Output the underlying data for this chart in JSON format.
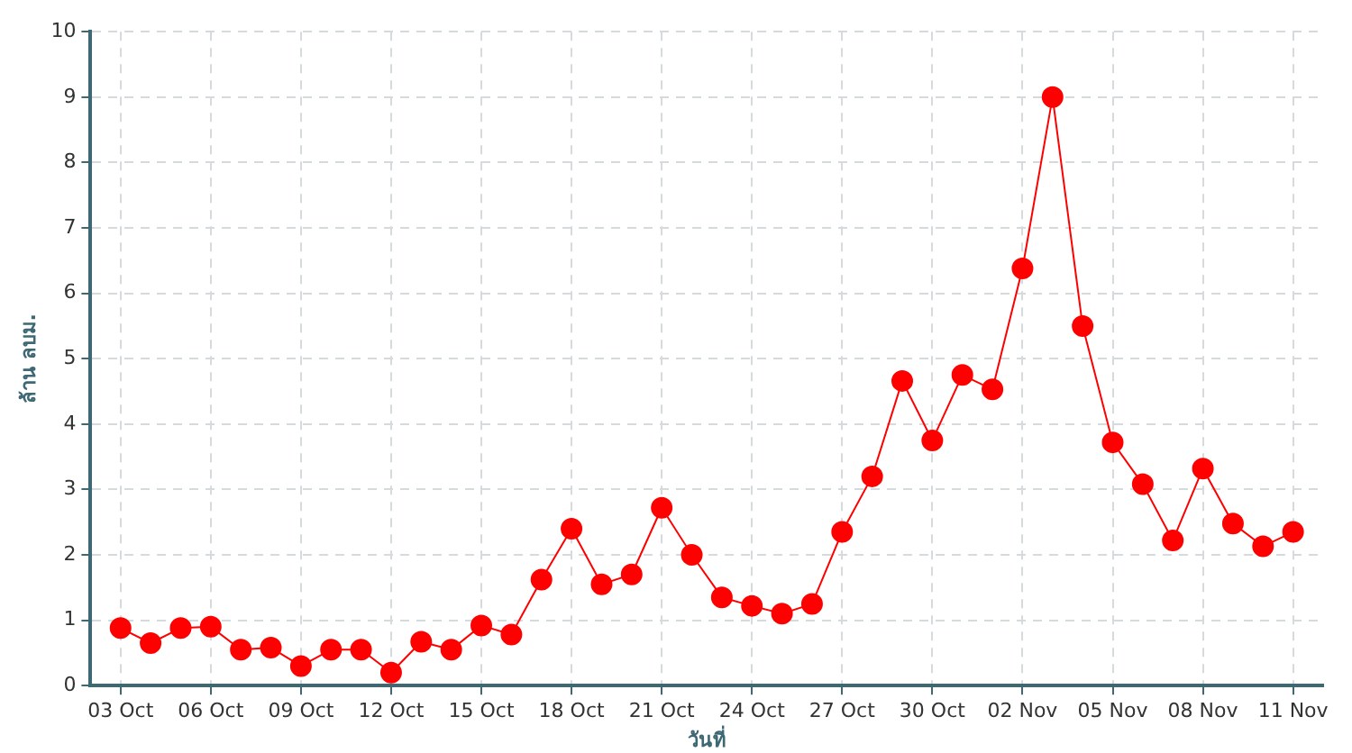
{
  "chart_data": {
    "type": "line",
    "xlabel": "วันที่",
    "ylabel": "ล้าน ลบม.",
    "x": [
      "--10-03",
      "--10-04",
      "--10-05",
      "--10-06",
      "--10-07",
      "--10-08",
      "--10-09",
      "--10-10",
      "--10-11",
      "--10-12",
      "--10-13",
      "--10-14",
      "--10-15",
      "--10-16",
      "--10-17",
      "--10-18",
      "--10-19",
      "--10-20",
      "--10-21",
      "--10-22",
      "--10-23",
      "--10-24",
      "--10-25",
      "--10-26",
      "--10-27",
      "--10-28",
      "--10-29",
      "--10-30",
      "--10-31",
      "--11-01",
      "--11-02",
      "--11-03",
      "--11-04",
      "--11-05",
      "--11-06",
      "--11-07",
      "--11-08",
      "--11-09",
      "--11-10",
      "--11-11"
    ],
    "series": [
      {
        "color": "#ff0000",
        "values": [
          0.88,
          0.65,
          0.88,
          0.9,
          0.55,
          0.58,
          0.3,
          0.55,
          0.55,
          0.2,
          0.67,
          0.55,
          0.92,
          0.78,
          1.62,
          2.4,
          1.55,
          1.7,
          2.72,
          2.0,
          1.35,
          1.22,
          1.1,
          1.25,
          2.35,
          3.2,
          4.66,
          3.75,
          4.75,
          4.53,
          6.38,
          9.0,
          5.5,
          3.72,
          3.08,
          2.22,
          3.32,
          2.48,
          2.13,
          2.35
        ]
      }
    ],
    "xlim": [
      "--10-02",
      "--11-12"
    ],
    "xticks": [
      {
        "value": "--10-03",
        "label": "03 Oct"
      },
      {
        "value": "--10-06",
        "label": "06 Oct"
      },
      {
        "value": "--10-09",
        "label": "09 Oct"
      },
      {
        "value": "--10-12",
        "label": "12 Oct"
      },
      {
        "value": "--10-15",
        "label": "15 Oct"
      },
      {
        "value": "--10-18",
        "label": "18 Oct"
      },
      {
        "value": "--10-21",
        "label": "21 Oct"
      },
      {
        "value": "--10-24",
        "label": "24 Oct"
      },
      {
        "value": "--10-27",
        "label": "27 Oct"
      },
      {
        "value": "--10-30",
        "label": "30 Oct"
      },
      {
        "value": "--11-02",
        "label": "02 Nov"
      },
      {
        "value": "--11-05",
        "label": "05 Nov"
      },
      {
        "value": "--11-08",
        "label": "08 Nov"
      },
      {
        "value": "--11-11",
        "label": "11 Nov"
      }
    ],
    "ylim": [
      0,
      10
    ],
    "yticks": [
      0,
      1,
      2,
      3,
      4,
      5,
      6,
      7,
      8,
      9,
      10
    ],
    "grid": true,
    "marker": "circle",
    "line_style": "solid",
    "legend": false
  }
}
